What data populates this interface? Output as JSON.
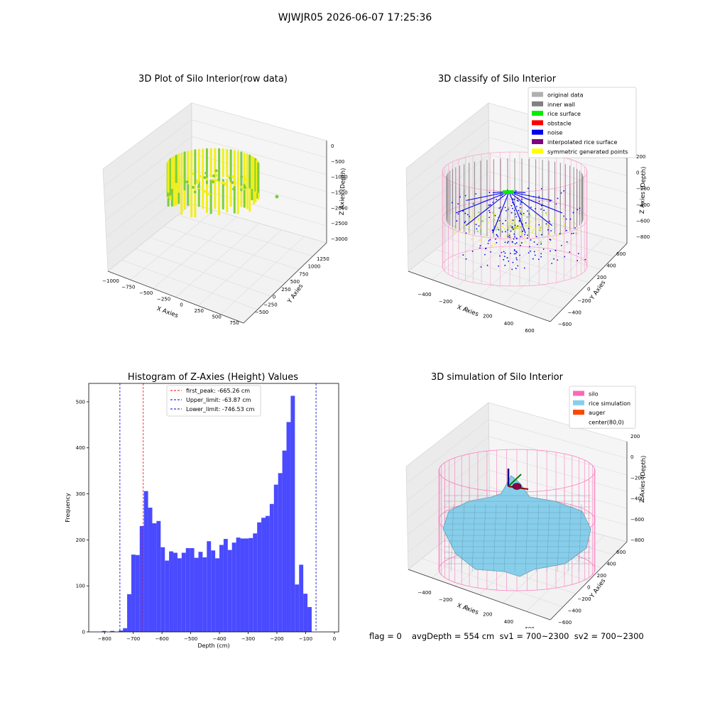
{
  "suptitle": "WJWJR05 2026-06-07 17:25:36",
  "colors": {
    "plot1_low": "#7ccf3a",
    "plot1_high": "#f2ee1a",
    "wall": "#808080",
    "rice_surface": "#00ee00",
    "obstacle": "#ff0000",
    "noise": "#0000ee",
    "interpolated": "#800080",
    "symmetric": "#ffff00",
    "silo": "#ff69b4",
    "rice_sim": "#87ceeb",
    "auger": "#ff4500",
    "hist_bar": "#4a4aff",
    "first_peak": "#ff0000",
    "limits": "#0000cc"
  },
  "panels": {
    "p1": {
      "title": "3D Plot of Silo Interior(row data)",
      "xlabel": "X Axies",
      "ylabel": "Y Axies",
      "zlabel": "Z Axies (Depth)",
      "xticks": [
        "−1000",
        "−750",
        "−500",
        "−250",
        "0",
        "250",
        "500",
        "750"
      ],
      "yticks": [
        "−500",
        "−250",
        "0",
        "250",
        "500",
        "750",
        "1000",
        "1250"
      ],
      "zticks": [
        "0",
        "−500",
        "−1000",
        "−1500",
        "−2000",
        "−2500",
        "−3000"
      ]
    },
    "p2": {
      "title": "3D classify of Silo Interior",
      "xlabel": "X Axies",
      "ylabel": "Y Axies",
      "zlabel": "Z Axies (Depth)",
      "xticks": [
        "−400",
        "−200",
        "0",
        "200",
        "400",
        "600"
      ],
      "yticks": [
        "−600",
        "−400",
        "−200",
        "0",
        "200",
        "400",
        "600"
      ],
      "zticks": [
        "200",
        "0",
        "−200",
        "−400",
        "−600",
        "−800"
      ],
      "legend": [
        {
          "label": "original data",
          "color": "#b0b0b0"
        },
        {
          "label": "inner wall",
          "color": "#808080"
        },
        {
          "label": "rice surface",
          "color": "#00ee00"
        },
        {
          "label": "obstacle",
          "color": "#ff0000"
        },
        {
          "label": "noise",
          "color": "#0000ee"
        },
        {
          "label": "interpolated rice surface",
          "color": "#800080"
        },
        {
          "label": "symmetric generated points",
          "color": "#ffff00"
        }
      ]
    },
    "p4": {
      "title": "3D simulation of Silo Interior",
      "xlabel": "X Axies",
      "ylabel": "Y Axies",
      "zlabel": "Z Axies (Depth)",
      "xticks": [
        "−400",
        "−200",
        "0",
        "200",
        "400",
        "600"
      ],
      "yticks": [
        "−600",
        "−400",
        "−200",
        "0",
        "200",
        "400",
        "600"
      ],
      "zticks": [
        "200",
        "0",
        "−200",
        "−400",
        "−600",
        "−800"
      ],
      "legend": [
        {
          "label": "silo",
          "color": "#ff69b4"
        },
        {
          "label": "rice simulation",
          "color": "#87ceeb"
        },
        {
          "label": "auger",
          "color": "#ff4500"
        },
        {
          "label": "center(80,0)",
          "color": "#ffffff"
        }
      ]
    }
  },
  "chart_data": {
    "type": "bar",
    "title": "Histogram of Z-Axies (Height) Values",
    "xlabel": "Depth (cm)",
    "ylabel": "Frequency",
    "xlim": [
      -855,
      15
    ],
    "ylim": [
      0,
      540
    ],
    "xticks": [
      -800,
      -700,
      -600,
      -500,
      -400,
      -300,
      -200,
      -100,
      0
    ],
    "yticks": [
      0,
      100,
      200,
      300,
      400,
      500
    ],
    "bin_width": 14.6,
    "bins_left": [
      -809.0,
      -794.4,
      -779.8,
      -765.2,
      -750.6,
      -736.0,
      -721.4,
      -706.8,
      -692.2,
      -677.6,
      -663.0,
      -648.4,
      -633.8,
      -619.2,
      -604.6,
      -590.0,
      -575.4,
      -560.8,
      -546.2,
      -531.6,
      -517.0,
      -502.4,
      -487.8,
      -473.2,
      -458.6,
      -444.0,
      -429.4,
      -414.8,
      -400.2,
      -385.6,
      -371.0,
      -356.4,
      -341.8,
      -327.2,
      -312.6,
      -298.0,
      -283.4,
      -268.8,
      -254.2,
      -239.6,
      -225.0,
      -210.4,
      -195.8,
      -181.2,
      -166.6,
      -152.0,
      -137.4,
      -122.8,
      -108.2,
      -93.6,
      -79.0,
      -64.4,
      -49.8,
      -35.2,
      -20.6
    ],
    "values": [
      2,
      0,
      2,
      0,
      3,
      8,
      82,
      168,
      167,
      230,
      306,
      270,
      236,
      241,
      184,
      155,
      175,
      172,
      160,
      172,
      182,
      182,
      161,
      174,
      162,
      197,
      177,
      160,
      189,
      202,
      178,
      194,
      205,
      203,
      203,
      204,
      214,
      238,
      248,
      252,
      278,
      320,
      345,
      394,
      456,
      513,
      103,
      146,
      83,
      54,
      0,
      0,
      0,
      0,
      0
    ],
    "vlines": [
      {
        "label": "first_peak: -665.26 cm",
        "x": -665.26,
        "color": "#ff0000"
      },
      {
        "label": "Upper_limit: -63.87 cm",
        "x": -63.87,
        "color": "#0000cc"
      },
      {
        "label": "Lower_limit: -746.53 cm",
        "x": -746.53,
        "color": "#0000cc"
      }
    ]
  },
  "footer": {
    "flag": "flag = 0",
    "stats": "avgDepth = 554 cm  sv1 = 700~2300  sv2 = 700~2300"
  }
}
